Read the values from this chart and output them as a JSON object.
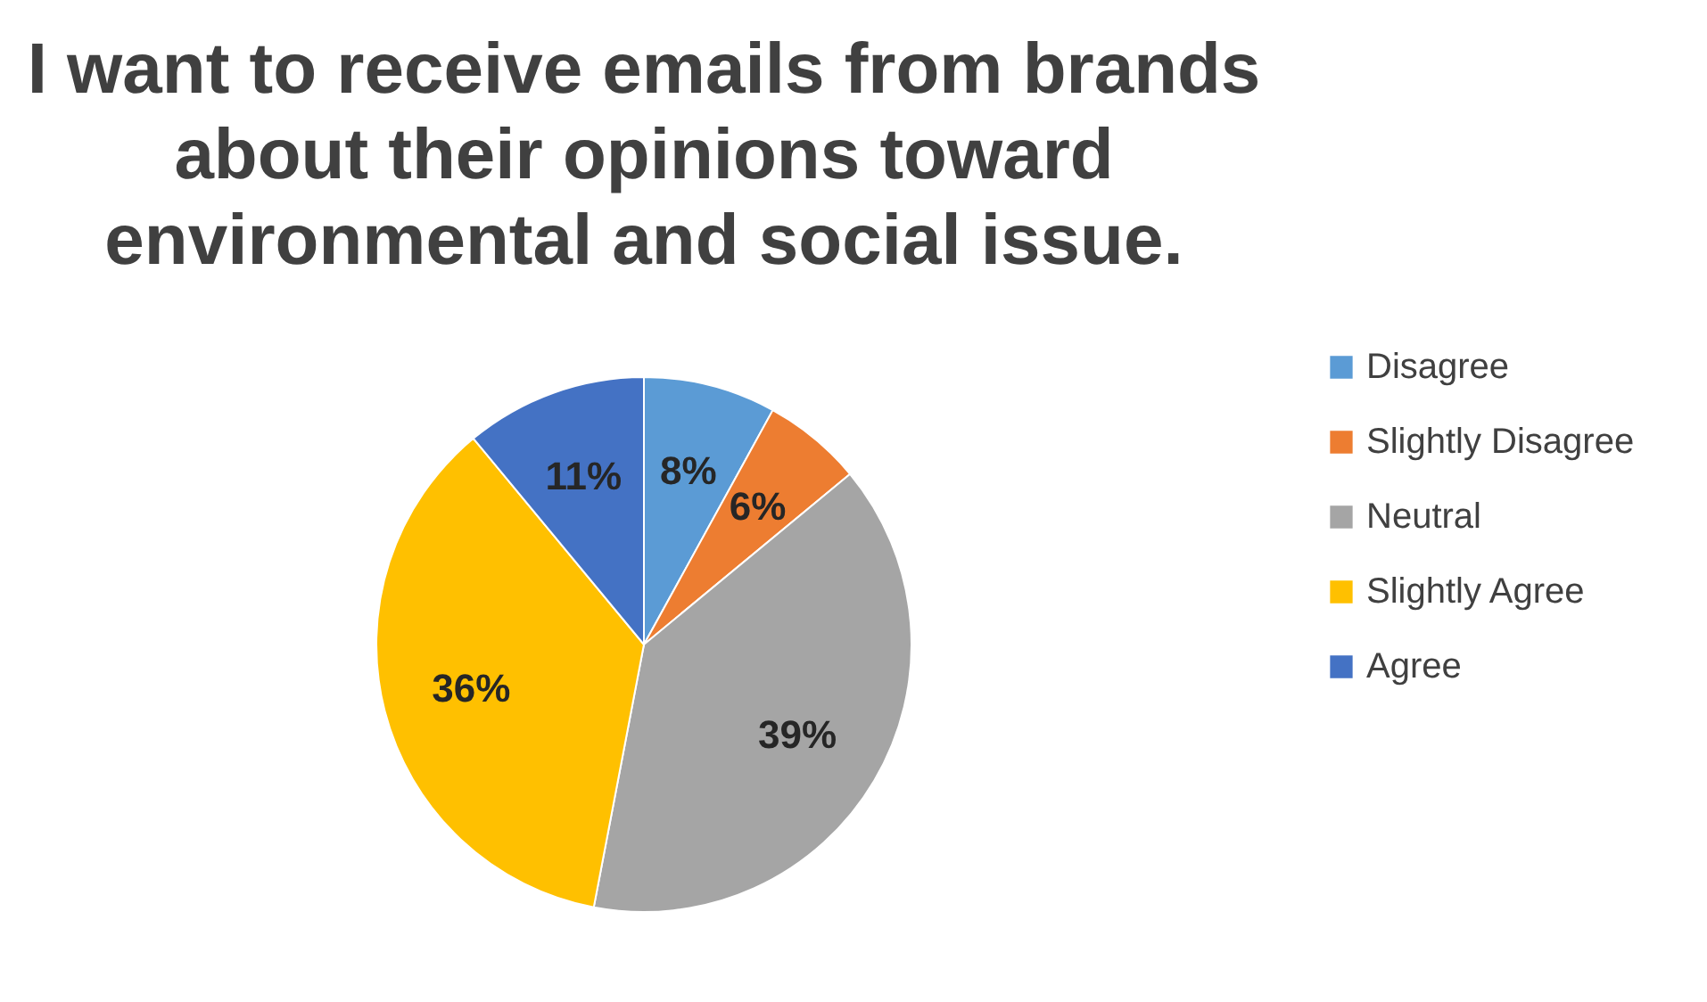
{
  "chart_data": {
    "type": "pie",
    "title": "I want to receive emails from brands about their opinions toward environmental and social issue.",
    "categories": [
      "Disagree",
      "Slightly Disagree",
      "Neutral",
      "Slightly Agree",
      "Agree"
    ],
    "values": [
      8,
      6,
      39,
      36,
      11
    ],
    "colors": [
      "#5b9bd5",
      "#ed7d31",
      "#a5a5a5",
      "#ffc000",
      "#4472c4"
    ],
    "value_labels": [
      "8%",
      "6%",
      "39%",
      "36%",
      "11%"
    ],
    "legend": "right"
  }
}
